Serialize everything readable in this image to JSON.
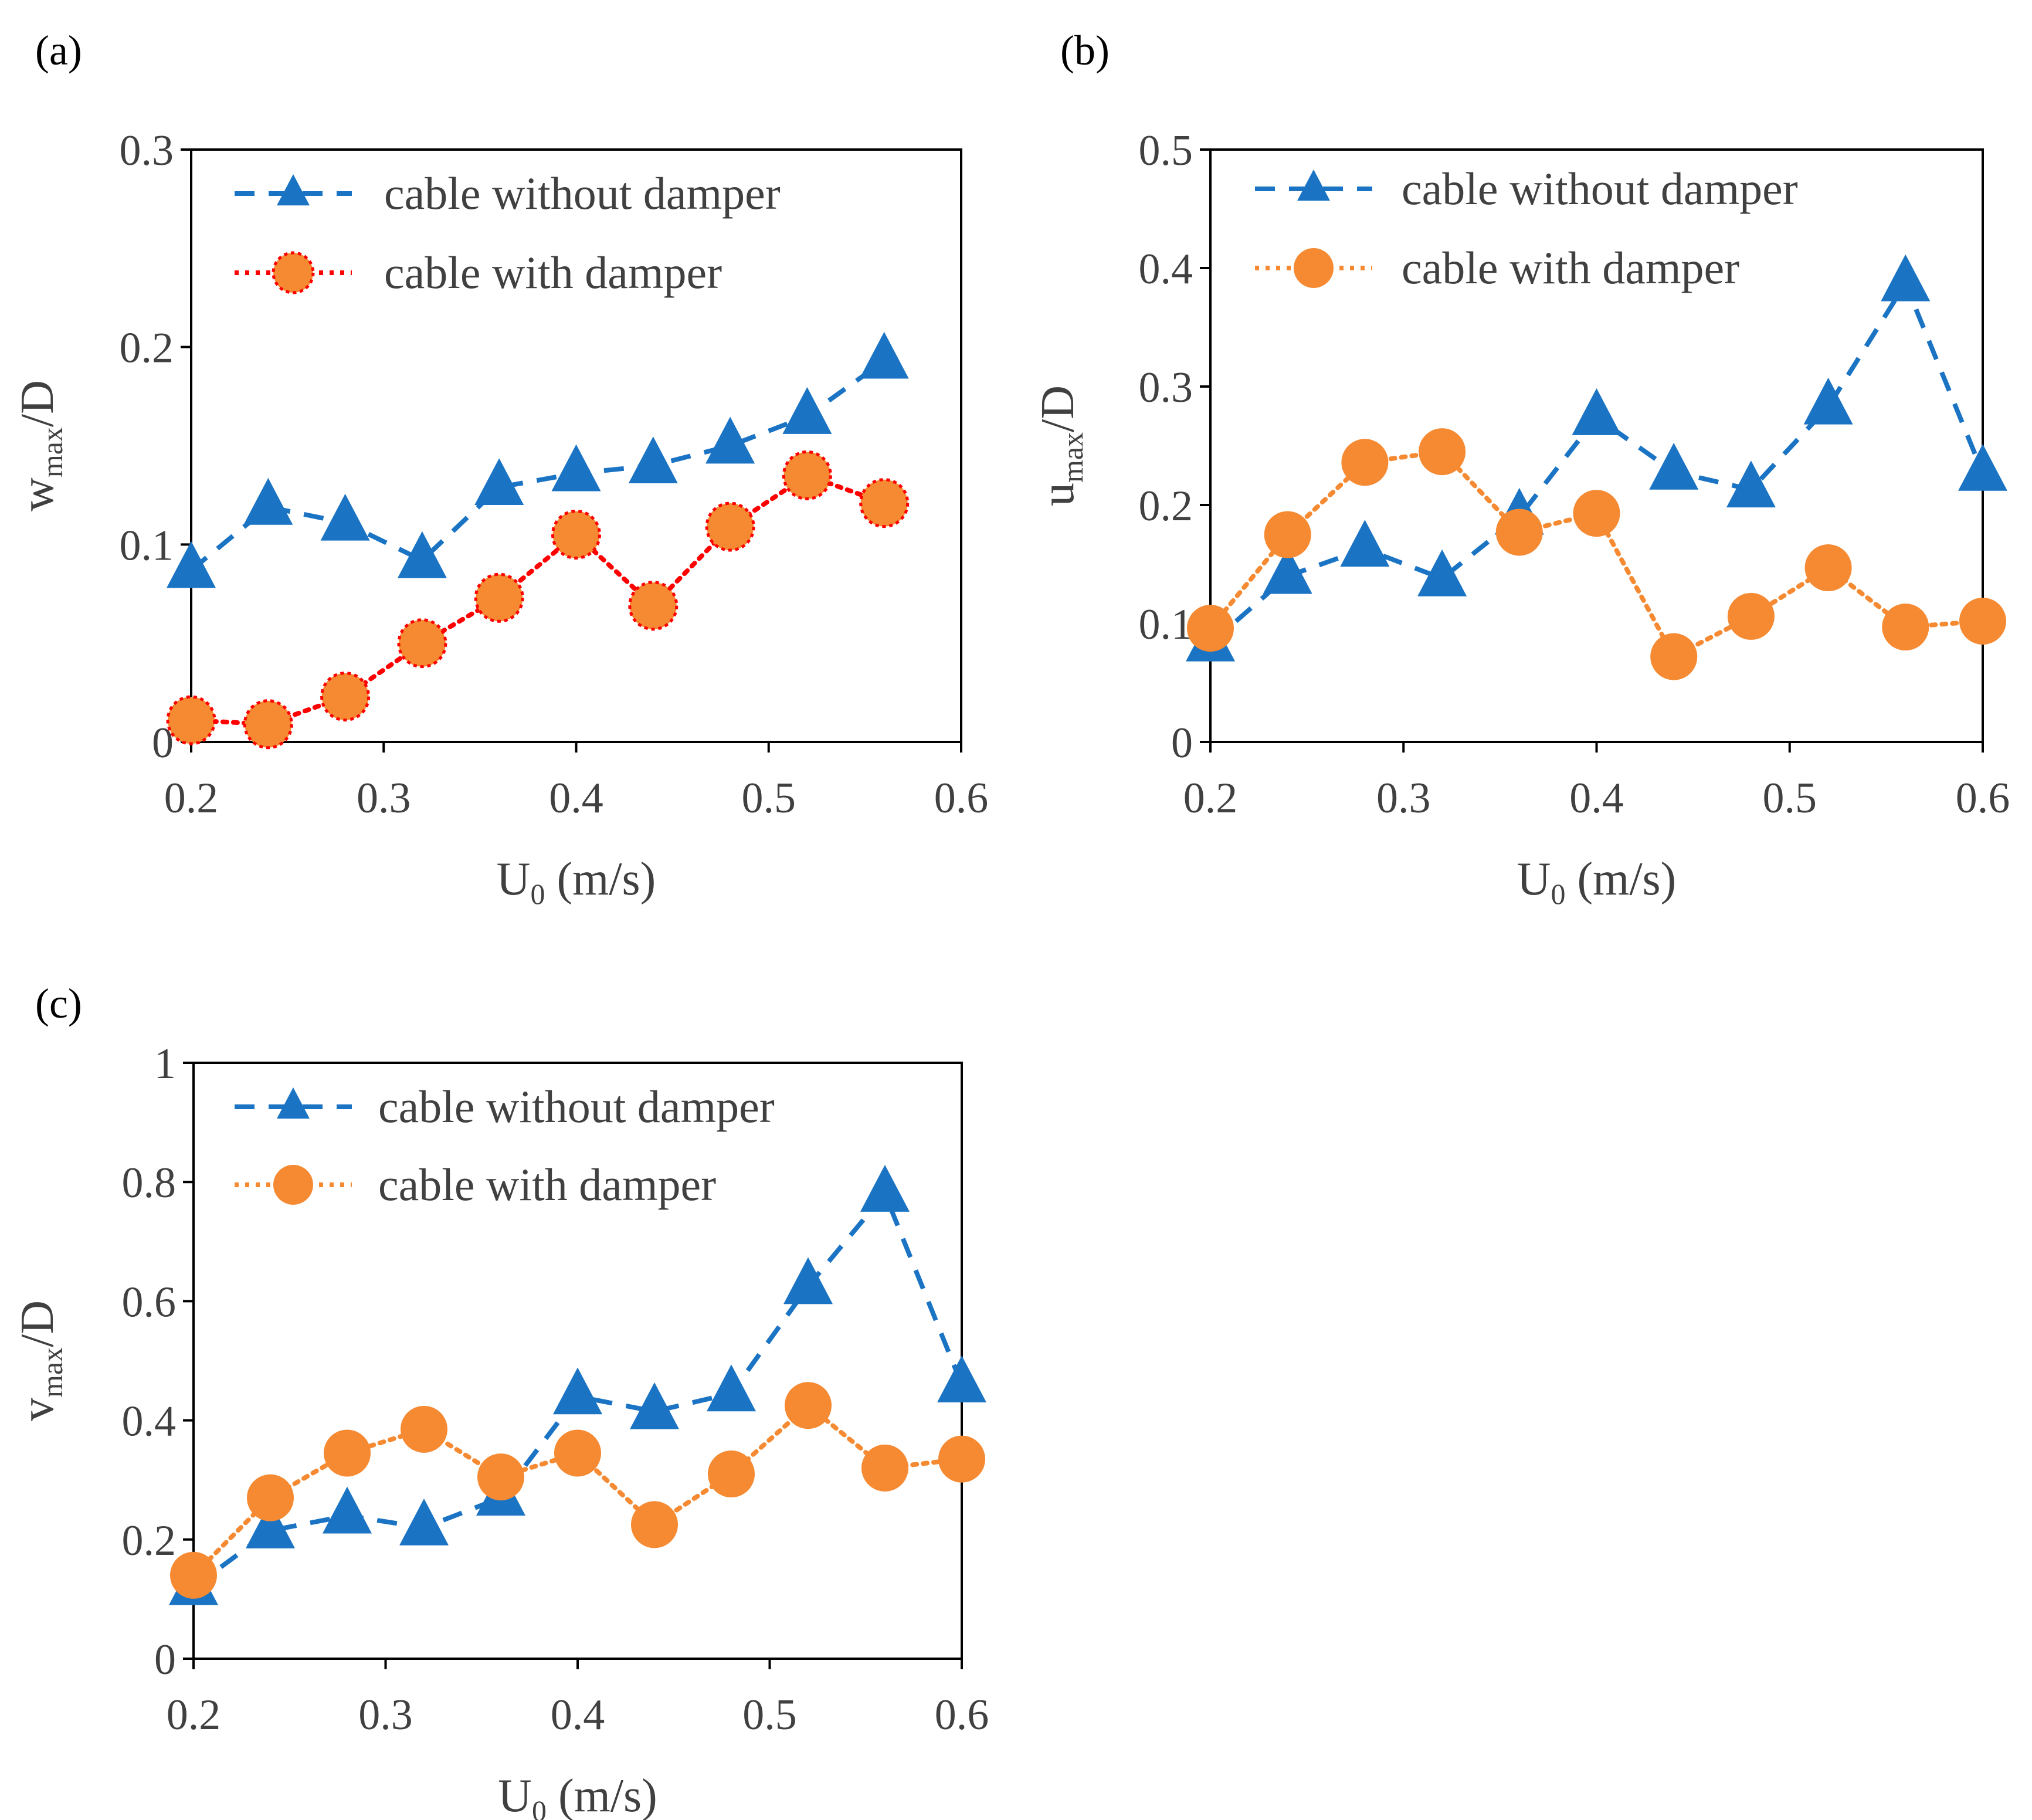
{
  "chart_data": [
    {
      "panel_label": "(a)",
      "type": "line",
      "xlabel": "U",
      "xlabel_sub": "0",
      "xlabel_rest": " (m/s)",
      "ylabel": "w",
      "ylabel_sub": "max",
      "ylabel_rest": "/D",
      "xlim": [
        0.2,
        0.6
      ],
      "ylim": [
        0,
        0.3
      ],
      "x_ticks": [
        "0.2",
        "0.3",
        "0.4",
        "0.5",
        "0.6"
      ],
      "y_ticks": [
        "0",
        "0.1",
        "0.2",
        "0.3"
      ],
      "grid": false,
      "legend": "top-left",
      "series": [
        {
          "name": "cable without damper",
          "marker": "triangle",
          "line": "dashed",
          "color": "#1a73c3",
          "x": [
            0.2,
            0.24,
            0.28,
            0.32,
            0.36,
            0.4,
            0.44,
            0.48,
            0.52,
            0.56
          ],
          "y": [
            0.087,
            0.119,
            0.111,
            0.092,
            0.129,
            0.136,
            0.14,
            0.15,
            0.165,
            0.193
          ]
        },
        {
          "name": "cable with damper",
          "marker": "circle",
          "line": "dotted",
          "color": "#f58a32",
          "line_color": "#ff0000",
          "marker_edge": "#ff0000",
          "x": [
            0.2,
            0.24,
            0.28,
            0.32,
            0.36,
            0.4,
            0.44,
            0.48,
            0.52,
            0.56
          ],
          "y": [
            0.011,
            0.009,
            0.023,
            0.05,
            0.073,
            0.105,
            0.069,
            0.109,
            0.135,
            0.121
          ]
        }
      ]
    },
    {
      "panel_label": "(b)",
      "type": "line",
      "xlabel": "U",
      "xlabel_sub": "0",
      "xlabel_rest": " (m/s)",
      "ylabel": "u",
      "ylabel_sub": "max",
      "ylabel_rest": "/D",
      "xlim": [
        0.2,
        0.6
      ],
      "ylim": [
        0,
        0.5
      ],
      "x_ticks": [
        "0.2",
        "0.3",
        "0.4",
        "0.5",
        "0.6"
      ],
      "y_ticks": [
        "0",
        "0.1",
        "0.2",
        "0.3",
        "0.4",
        "0.5"
      ],
      "grid": false,
      "legend": "top-left",
      "series": [
        {
          "name": "cable without damper",
          "marker": "triangle",
          "line": "dashed",
          "color": "#1a73c3",
          "x": [
            0.2,
            0.24,
            0.28,
            0.32,
            0.36,
            0.4,
            0.44,
            0.48,
            0.52,
            0.56,
            0.6
          ],
          "y": [
            0.083,
            0.14,
            0.163,
            0.138,
            0.19,
            0.274,
            0.228,
            0.213,
            0.283,
            0.387,
            0.227
          ]
        },
        {
          "name": "cable with damper",
          "marker": "circle",
          "line": "dotted",
          "color": "#f58a32",
          "x": [
            0.2,
            0.24,
            0.28,
            0.32,
            0.36,
            0.4,
            0.44,
            0.48,
            0.52,
            0.56,
            0.6
          ],
          "y": [
            0.096,
            0.175,
            0.236,
            0.245,
            0.177,
            0.193,
            0.072,
            0.106,
            0.147,
            0.097,
            0.102
          ]
        }
      ]
    },
    {
      "panel_label": "(c)",
      "type": "line",
      "xlabel": "U",
      "xlabel_sub": "0",
      "xlabel_rest": " (m/s)",
      "ylabel": "v",
      "ylabel_sub": "max",
      "ylabel_rest": "/D",
      "xlim": [
        0.2,
        0.6
      ],
      "ylim": [
        0,
        1
      ],
      "x_ticks": [
        "0.2",
        "0.3",
        "0.4",
        "0.5",
        "0.6"
      ],
      "y_ticks": [
        "0",
        "0.2",
        "0.4",
        "0.6",
        "0.8",
        "1"
      ],
      "grid": false,
      "legend": "top-left",
      "series": [
        {
          "name": "cable without damper",
          "marker": "triangle",
          "line": "dashed",
          "color": "#1a73c3",
          "x": [
            0.2,
            0.24,
            0.28,
            0.32,
            0.36,
            0.4,
            0.44,
            0.48,
            0.52,
            0.56,
            0.6
          ],
          "y": [
            0.12,
            0.215,
            0.24,
            0.22,
            0.27,
            0.44,
            0.415,
            0.445,
            0.625,
            0.78,
            0.46
          ]
        },
        {
          "name": "cable with damper",
          "marker": "circle",
          "line": "dotted",
          "color": "#f58a32",
          "x": [
            0.2,
            0.24,
            0.28,
            0.32,
            0.36,
            0.4,
            0.44,
            0.48,
            0.52,
            0.56,
            0.6
          ],
          "y": [
            0.14,
            0.27,
            0.345,
            0.385,
            0.305,
            0.345,
            0.225,
            0.31,
            0.425,
            0.32,
            0.335
          ]
        }
      ]
    }
  ]
}
